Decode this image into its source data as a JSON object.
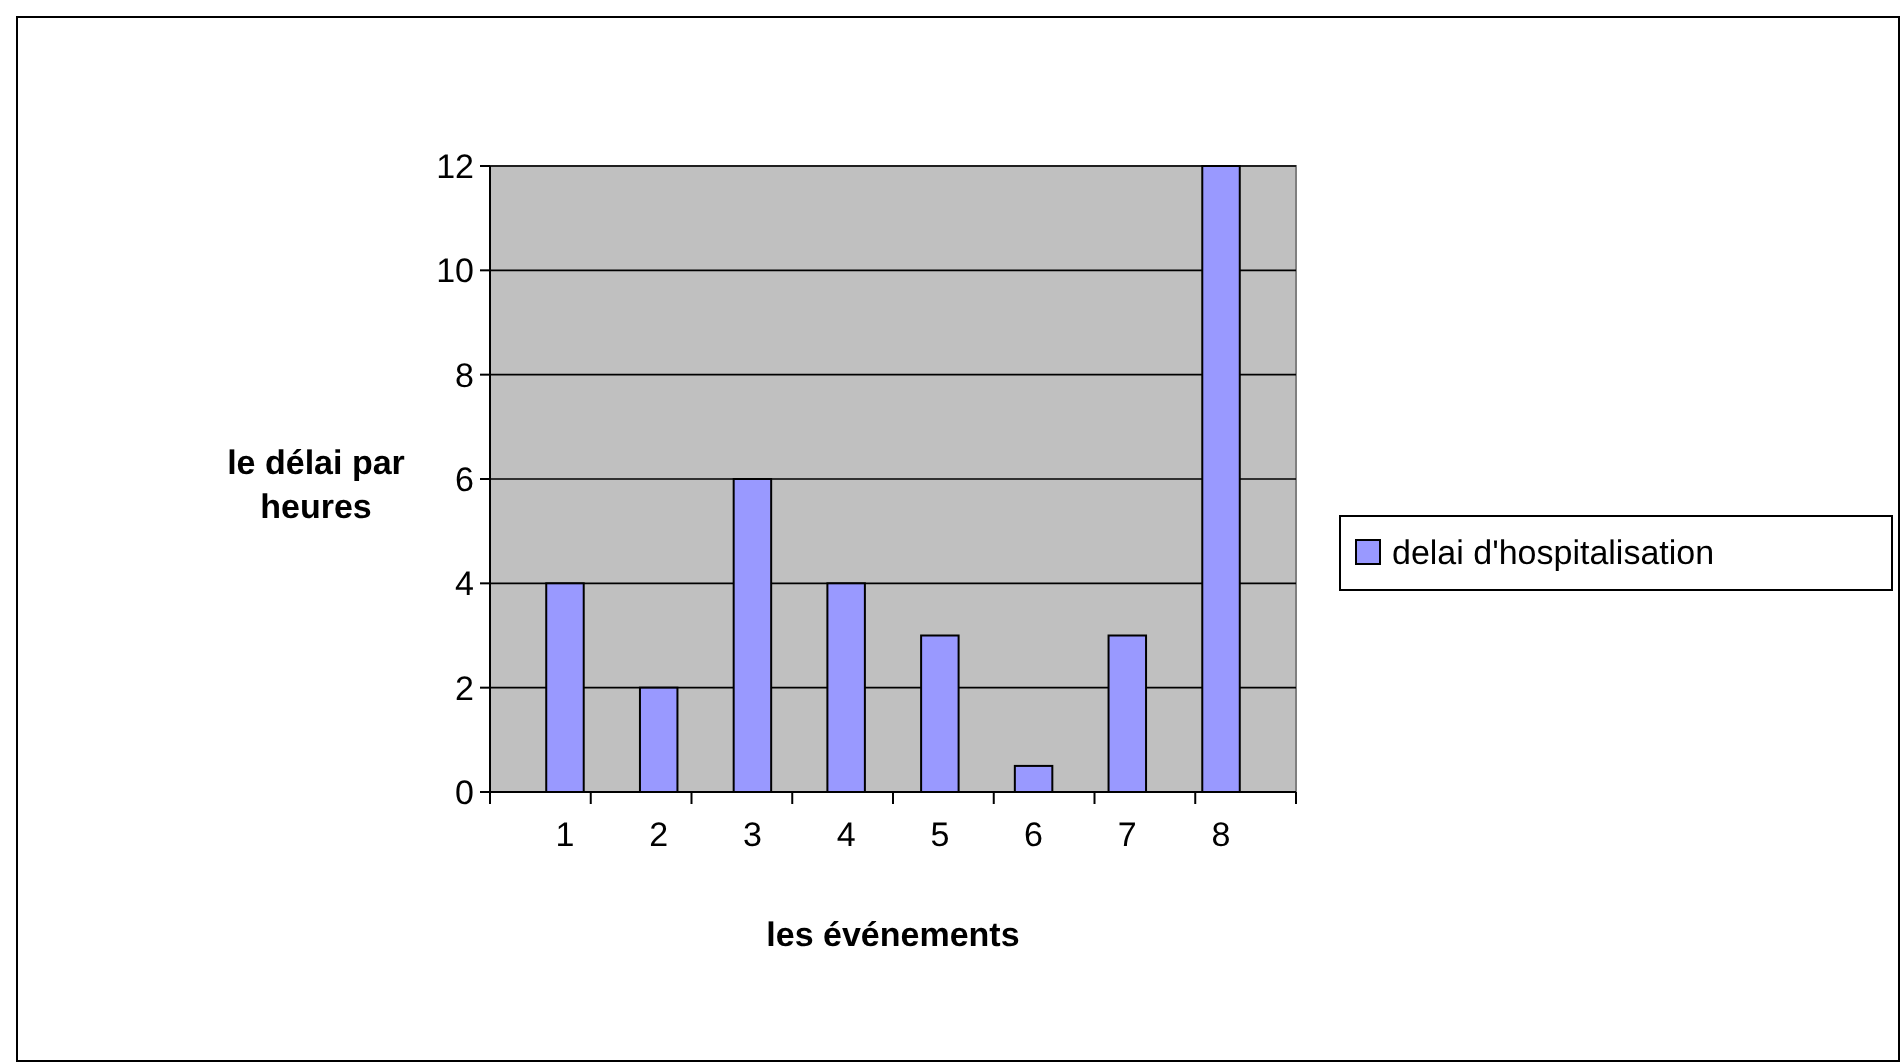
{
  "chart_data": {
    "type": "bar",
    "xlabel": "les événements",
    "ylabel": "le délai par heures",
    "categories": [
      "1",
      "2",
      "3",
      "4",
      "5",
      "6",
      "7",
      "8"
    ],
    "series": [
      {
        "name": "delai d'hospitalisation",
        "color": "#9999ff",
        "values": [
          4,
          2,
          6,
          4,
          3,
          0.5,
          3,
          12
        ]
      }
    ],
    "ylim": [
      0,
      12
    ],
    "yticks": [
      0,
      2,
      4,
      6,
      8,
      10,
      12
    ],
    "grid": "y",
    "legend": "right"
  }
}
